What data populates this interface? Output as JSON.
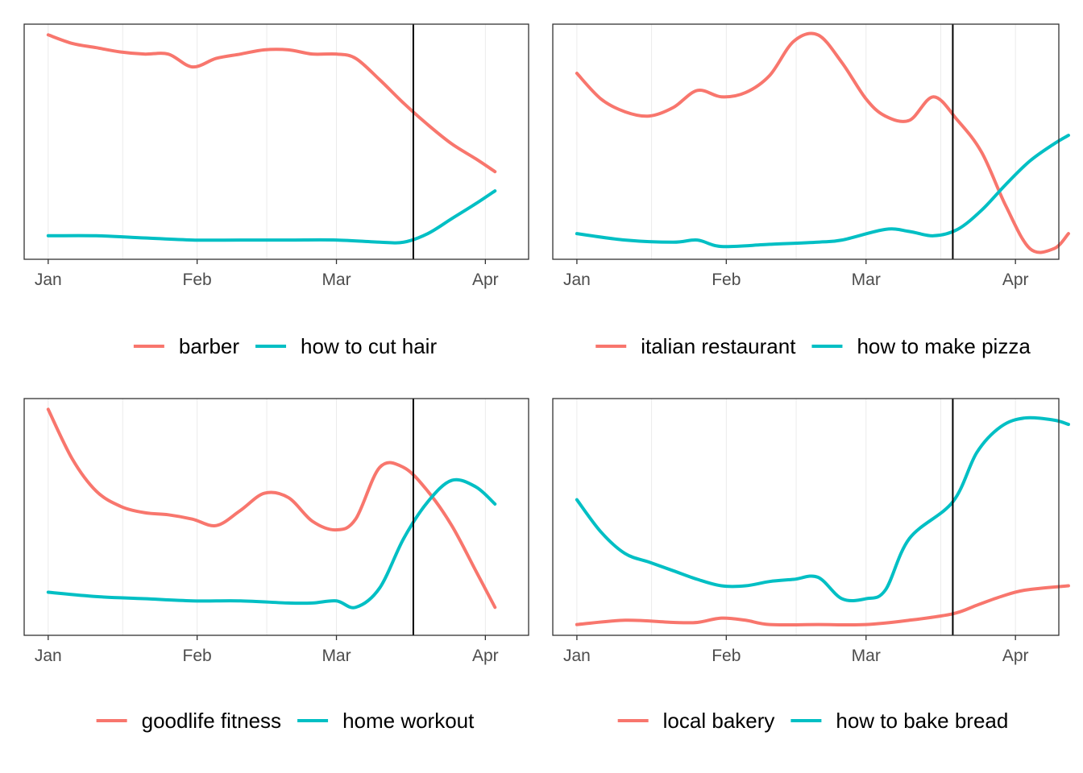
{
  "colors": {
    "series_a": "#F8766D",
    "series_b": "#00BFC4",
    "event_line": "#000000",
    "grid": "#EBEBEB",
    "border": "#333333"
  },
  "chart_data": [
    {
      "type": "line",
      "x_axis": {
        "type": "date",
        "ticks": [
          "2020-01-01",
          "2020-02-01",
          "2020-03-01",
          "2020-04-01"
        ],
        "tick_labels": [
          "Jan",
          "Feb",
          "Mar",
          "Apr"
        ],
        "range": [
          "2019-12-27",
          "2020-04-10"
        ]
      },
      "y_axis": {
        "labels_shown": false,
        "range": [
          -5,
          105
        ]
      },
      "grid": "vertical-minor",
      "event_line": "2020-03-17",
      "legend_position": "bottom",
      "series": [
        {
          "name": "barber",
          "color": "#F8766D",
          "points": [
            [
              "2020-01-01",
              100
            ],
            [
              "2020-01-06",
              96
            ],
            [
              "2020-01-11",
              94
            ],
            [
              "2020-01-16",
              92
            ],
            [
              "2020-01-21",
              91
            ],
            [
              "2020-01-26",
              91
            ],
            [
              "2020-01-31",
              85
            ],
            [
              "2020-02-05",
              89
            ],
            [
              "2020-02-10",
              91
            ],
            [
              "2020-02-15",
              93
            ],
            [
              "2020-02-20",
              93
            ],
            [
              "2020-02-25",
              91
            ],
            [
              "2020-03-01",
              91
            ],
            [
              "2020-03-05",
              89
            ],
            [
              "2020-03-10",
              79
            ],
            [
              "2020-03-15",
              68
            ],
            [
              "2020-03-20",
              58
            ],
            [
              "2020-03-25",
              49
            ],
            [
              "2020-03-30",
              42
            ],
            [
              "2020-04-03",
              36
            ]
          ]
        },
        {
          "name": "how to cut hair",
          "color": "#00BFC4",
          "points": [
            [
              "2020-01-01",
              6
            ],
            [
              "2020-01-11",
              6
            ],
            [
              "2020-01-21",
              5
            ],
            [
              "2020-01-31",
              4
            ],
            [
              "2020-02-10",
              4
            ],
            [
              "2020-02-20",
              4
            ],
            [
              "2020-03-01",
              4
            ],
            [
              "2020-03-10",
              3
            ],
            [
              "2020-03-15",
              3
            ],
            [
              "2020-03-20",
              7
            ],
            [
              "2020-03-25",
              14
            ],
            [
              "2020-03-30",
              21
            ],
            [
              "2020-04-03",
              27
            ]
          ]
        }
      ]
    },
    {
      "type": "line",
      "x_axis": {
        "type": "date",
        "ticks": [
          "2020-01-01",
          "2020-02-01",
          "2020-03-01",
          "2020-04-01"
        ],
        "tick_labels": [
          "Jan",
          "Feb",
          "Mar",
          "Apr"
        ],
        "range": [
          "2019-12-27",
          "2020-04-10"
        ]
      },
      "y_axis": {
        "labels_shown": false,
        "range": [
          -5,
          105
        ]
      },
      "grid": "vertical-minor",
      "event_line": "2020-03-19",
      "legend_position": "bottom",
      "series": [
        {
          "name": "italian restaurant",
          "color": "#F8766D",
          "points": [
            [
              "2020-01-01",
              82
            ],
            [
              "2020-01-06",
              70
            ],
            [
              "2020-01-11",
              64
            ],
            [
              "2020-01-16",
              62
            ],
            [
              "2020-01-21",
              66
            ],
            [
              "2020-01-26",
              74
            ],
            [
              "2020-01-31",
              71
            ],
            [
              "2020-02-05",
              73
            ],
            [
              "2020-02-10",
              81
            ],
            [
              "2020-02-15",
              97
            ],
            [
              "2020-02-20",
              100
            ],
            [
              "2020-02-25",
              87
            ],
            [
              "2020-03-01",
              70
            ],
            [
              "2020-03-05",
              62
            ],
            [
              "2020-03-10",
              60
            ],
            [
              "2020-03-15",
              71
            ],
            [
              "2020-03-20",
              60
            ],
            [
              "2020-03-25",
              45
            ],
            [
              "2020-03-30",
              20
            ],
            [
              "2020-04-04",
              0
            ],
            [
              "2020-04-09",
              0
            ],
            [
              "2020-04-12",
              7
            ]
          ]
        },
        {
          "name": "how to make pizza",
          "color": "#00BFC4",
          "points": [
            [
              "2020-01-01",
              7
            ],
            [
              "2020-01-11",
              4
            ],
            [
              "2020-01-21",
              3
            ],
            [
              "2020-01-26",
              4
            ],
            [
              "2020-01-31",
              1
            ],
            [
              "2020-02-10",
              2
            ],
            [
              "2020-02-20",
              3
            ],
            [
              "2020-02-25",
              4
            ],
            [
              "2020-03-05",
              9
            ],
            [
              "2020-03-10",
              8
            ],
            [
              "2020-03-15",
              6
            ],
            [
              "2020-03-20",
              9
            ],
            [
              "2020-03-25",
              18
            ],
            [
              "2020-03-30",
              30
            ],
            [
              "2020-04-04",
              41
            ],
            [
              "2020-04-09",
              49
            ],
            [
              "2020-04-12",
              53
            ]
          ]
        }
      ]
    },
    {
      "type": "line",
      "x_axis": {
        "type": "date",
        "ticks": [
          "2020-01-01",
          "2020-02-01",
          "2020-03-01",
          "2020-04-01"
        ],
        "tick_labels": [
          "Jan",
          "Feb",
          "Mar",
          "Apr"
        ],
        "range": [
          "2019-12-27",
          "2020-04-10"
        ]
      },
      "y_axis": {
        "labels_shown": false,
        "range": [
          -5,
          105
        ]
      },
      "grid": "vertical-minor",
      "event_line": "2020-03-17",
      "legend_position": "bottom",
      "series": [
        {
          "name": "goodlife fitness",
          "color": "#F8766D",
          "points": [
            [
              "2020-01-01",
              100
            ],
            [
              "2020-01-06",
              77
            ],
            [
              "2020-01-11",
              62
            ],
            [
              "2020-01-16",
              55
            ],
            [
              "2020-01-21",
              52
            ],
            [
              "2020-01-26",
              51
            ],
            [
              "2020-01-31",
              49
            ],
            [
              "2020-02-05",
              46
            ],
            [
              "2020-02-10",
              53
            ],
            [
              "2020-02-15",
              61
            ],
            [
              "2020-02-20",
              59
            ],
            [
              "2020-02-25",
              48
            ],
            [
              "2020-03-01",
              44
            ],
            [
              "2020-03-05",
              49
            ],
            [
              "2020-03-10",
              73
            ],
            [
              "2020-03-15",
              73
            ],
            [
              "2020-03-20",
              62
            ],
            [
              "2020-03-25",
              46
            ],
            [
              "2020-03-30",
              25
            ],
            [
              "2020-04-03",
              8
            ]
          ]
        },
        {
          "name": "home workout",
          "color": "#00BFC4",
          "points": [
            [
              "2020-01-01",
              15
            ],
            [
              "2020-01-11",
              13
            ],
            [
              "2020-01-21",
              12
            ],
            [
              "2020-01-31",
              11
            ],
            [
              "2020-02-10",
              11
            ],
            [
              "2020-02-20",
              10
            ],
            [
              "2020-02-25",
              10
            ],
            [
              "2020-03-01",
              11
            ],
            [
              "2020-03-05",
              8
            ],
            [
              "2020-03-10",
              17
            ],
            [
              "2020-03-15",
              40
            ],
            [
              "2020-03-20",
              57
            ],
            [
              "2020-03-25",
              67
            ],
            [
              "2020-03-30",
              64
            ],
            [
              "2020-04-03",
              56
            ]
          ]
        }
      ]
    },
    {
      "type": "line",
      "x_axis": {
        "type": "date",
        "ticks": [
          "2020-01-01",
          "2020-02-01",
          "2020-03-01",
          "2020-04-01"
        ],
        "tick_labels": [
          "Jan",
          "Feb",
          "Mar",
          "Apr"
        ],
        "range": [
          "2019-12-27",
          "2020-04-10"
        ]
      },
      "y_axis": {
        "labels_shown": false,
        "range": [
          -5,
          105
        ]
      },
      "grid": "vertical-minor",
      "event_line": "2020-03-19",
      "legend_position": "bottom",
      "series": [
        {
          "name": "local bakery",
          "color": "#F8766D",
          "points": [
            [
              "2020-01-01",
              0
            ],
            [
              "2020-01-11",
              2
            ],
            [
              "2020-01-21",
              1
            ],
            [
              "2020-01-26",
              1
            ],
            [
              "2020-01-31",
              3
            ],
            [
              "2020-02-05",
              2
            ],
            [
              "2020-02-10",
              0
            ],
            [
              "2020-02-20",
              0
            ],
            [
              "2020-03-01",
              0
            ],
            [
              "2020-03-10",
              2
            ],
            [
              "2020-03-19",
              5
            ],
            [
              "2020-03-24",
              9
            ],
            [
              "2020-03-29",
              13
            ],
            [
              "2020-04-03",
              16
            ],
            [
              "2020-04-12",
              18
            ]
          ]
        },
        {
          "name": "how to bake bread",
          "color": "#00BFC4",
          "points": [
            [
              "2020-01-01",
              58
            ],
            [
              "2020-01-06",
              43
            ],
            [
              "2020-01-11",
              33
            ],
            [
              "2020-01-16",
              29
            ],
            [
              "2020-01-21",
              25
            ],
            [
              "2020-01-26",
              21
            ],
            [
              "2020-01-31",
              18
            ],
            [
              "2020-02-05",
              18
            ],
            [
              "2020-02-10",
              20
            ],
            [
              "2020-02-15",
              21
            ],
            [
              "2020-02-20",
              22
            ],
            [
              "2020-02-25",
              12
            ],
            [
              "2020-03-01",
              12
            ],
            [
              "2020-03-05",
              16
            ],
            [
              "2020-03-10",
              40
            ],
            [
              "2020-03-19",
              57
            ],
            [
              "2020-03-24",
              80
            ],
            [
              "2020-03-29",
              92
            ],
            [
              "2020-04-03",
              96
            ],
            [
              "2020-04-09",
              95
            ],
            [
              "2020-04-12",
              93
            ]
          ]
        }
      ]
    }
  ]
}
